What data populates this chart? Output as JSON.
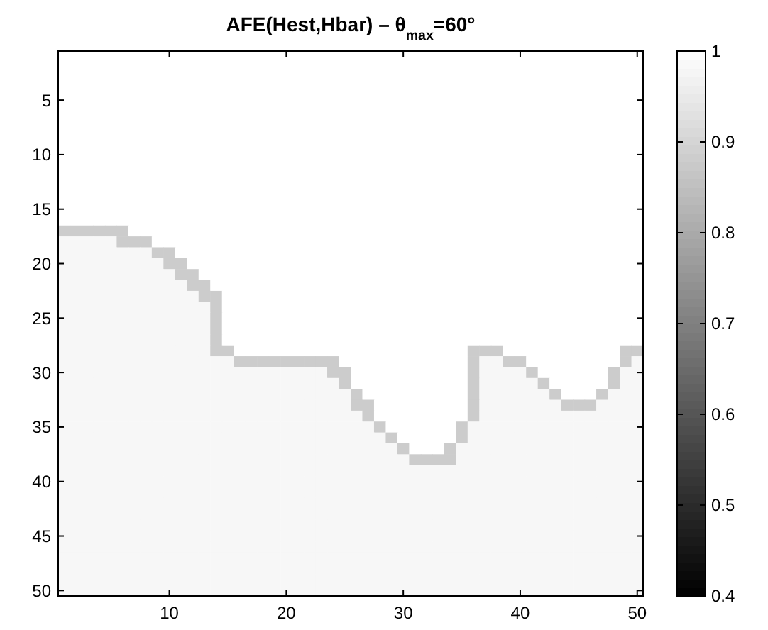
{
  "chart_data": {
    "type": "heatmap",
    "title": "AFE(Hest,Hbar) – θ$_{max}$=60°",
    "categories": [
      null,
      null,
      null,
      null,
      null,
      null,
      null,
      null,
      null,
      "10",
      null,
      null,
      null,
      null,
      null,
      null,
      null,
      null,
      null,
      "20",
      null,
      null,
      null,
      null,
      null,
      null,
      null,
      null,
      null,
      "30",
      null,
      null,
      null,
      null,
      null,
      null,
      null,
      null,
      null,
      "40",
      null,
      null,
      null,
      null,
      null,
      null,
      null,
      null,
      null,
      "50"
    ],
    "y_categories": [
      null,
      null,
      null,
      null,
      "5",
      null,
      null,
      null,
      null,
      "10",
      null,
      null,
      null,
      null,
      "15",
      null,
      null,
      null,
      null,
      "20",
      null,
      null,
      null,
      null,
      "25",
      null,
      null,
      null,
      null,
      "30",
      null,
      null,
      null,
      null,
      "35",
      null,
      null,
      null,
      null,
      "40",
      null,
      null,
      null,
      null,
      "45",
      null,
      null,
      null,
      null,
      "50"
    ],
    "clim": [
      0.4,
      1
    ],
    "cticks": [
      0.4,
      0.5,
      0.6,
      0.7,
      0.8,
      0.9,
      1
    ],
    "colors": [
      "#000000",
      "#ffffff"
    ],
    "cells": [
      [
        1,
        1,
        1,
        1,
        1,
        1,
        1,
        1,
        1,
        1,
        1,
        1,
        1,
        1,
        1,
        1,
        1,
        1,
        1,
        1,
        1,
        1,
        1,
        1,
        1,
        1,
        1,
        1,
        1,
        1,
        1,
        1,
        1,
        1,
        1,
        1,
        1,
        1,
        1,
        1,
        1,
        1,
        1,
        1,
        1,
        1,
        1,
        1,
        1,
        1
      ],
      [
        1,
        1,
        1,
        1,
        1,
        1,
        1,
        1,
        1,
        1,
        1,
        1,
        1,
        1,
        1,
        1,
        1,
        1,
        1,
        1,
        1,
        1,
        1,
        1,
        1,
        1,
        1,
        1,
        1,
        1,
        1,
        1,
        1,
        1,
        1,
        1,
        1,
        1,
        1,
        1,
        1,
        1,
        1,
        1,
        1,
        1,
        1,
        1,
        1,
        1
      ],
      [
        1,
        1,
        1,
        1,
        1,
        1,
        1,
        1,
        1,
        1,
        1,
        1,
        1,
        1,
        1,
        1,
        1,
        1,
        1,
        1,
        1,
        1,
        1,
        1,
        1,
        1,
        1,
        1,
        1,
        1,
        1,
        1,
        1,
        1,
        1,
        1,
        1,
        1,
        1,
        1,
        1,
        1,
        1,
        1,
        1,
        1,
        1,
        1,
        1,
        1
      ],
      [
        1,
        1,
        1,
        1,
        1,
        1,
        1,
        1,
        1,
        1,
        1,
        1,
        1,
        1,
        1,
        1,
        1,
        1,
        1,
        1,
        1,
        1,
        1,
        1,
        1,
        1,
        1,
        1,
        1,
        1,
        1,
        1,
        1,
        1,
        1,
        1,
        1,
        1,
        1,
        1,
        1,
        1,
        1,
        1,
        1,
        1,
        1,
        1,
        1,
        1
      ],
      [
        1,
        1,
        1,
        1,
        1,
        1,
        1,
        1,
        1,
        1,
        1,
        1,
        1,
        1,
        1,
        1,
        1,
        1,
        1,
        1,
        1,
        1,
        1,
        1,
        1,
        1,
        1,
        1,
        1,
        1,
        1,
        1,
        1,
        1,
        1,
        1,
        1,
        1,
        1,
        1,
        1,
        1,
        1,
        1,
        1,
        1,
        1,
        1,
        1,
        1
      ],
      [
        1,
        1,
        1,
        1,
        1,
        1,
        1,
        1,
        1,
        1,
        1,
        1,
        1,
        1,
        1,
        1,
        1,
        1,
        1,
        1,
        1,
        1,
        1,
        1,
        1,
        1,
        1,
        1,
        1,
        1,
        1,
        1,
        1,
        1,
        1,
        1,
        1,
        1,
        1,
        1,
        1,
        1,
        1,
        1,
        1,
        1,
        1,
        1,
        1,
        1
      ],
      [
        1,
        1,
        1,
        1,
        1,
        1,
        1,
        1,
        1,
        1,
        1,
        1,
        1,
        1,
        1,
        1,
        1,
        1,
        1,
        1,
        1,
        1,
        1,
        1,
        1,
        1,
        1,
        1,
        1,
        1,
        1,
        1,
        1,
        1,
        1,
        1,
        1,
        1,
        1,
        1,
        1,
        1,
        1,
        1,
        1,
        1,
        1,
        1,
        1,
        1
      ],
      [
        1,
        1,
        1,
        1,
        1,
        1,
        1,
        1,
        1,
        1,
        1,
        1,
        1,
        1,
        1,
        1,
        1,
        1,
        1,
        1,
        1,
        1,
        1,
        1,
        1,
        1,
        1,
        1,
        1,
        1,
        1,
        1,
        1,
        1,
        1,
        1,
        1,
        1,
        1,
        1,
        1,
        1,
        1,
        1,
        1,
        1,
        1,
        1,
        1,
        1
      ],
      [
        1,
        1,
        1,
        1,
        1,
        1,
        1,
        1,
        1,
        1,
        1,
        1,
        1,
        1,
        1,
        1,
        1,
        1,
        1,
        1,
        1,
        1,
        1,
        1,
        1,
        1,
        1,
        1,
        1,
        1,
        1,
        1,
        1,
        1,
        1,
        1,
        1,
        1,
        1,
        1,
        1,
        1,
        1,
        1,
        1,
        1,
        1,
        1,
        1,
        1
      ],
      [
        1,
        1,
        1,
        1,
        1,
        1,
        1,
        1,
        1,
        1,
        1,
        1,
        1,
        1,
        1,
        1,
        1,
        1,
        1,
        1,
        1,
        1,
        1,
        1,
        1,
        1,
        1,
        1,
        1,
        1,
        1,
        1,
        1,
        1,
        1,
        1,
        1,
        1,
        1,
        1,
        1,
        1,
        1,
        1,
        1,
        1,
        1,
        1,
        1,
        1
      ],
      [
        1,
        1,
        1,
        1,
        1,
        1,
        1,
        1,
        1,
        1,
        1,
        1,
        1,
        1,
        1,
        1,
        1,
        1,
        1,
        1,
        1,
        1,
        1,
        1,
        1,
        1,
        1,
        1,
        1,
        1,
        1,
        1,
        1,
        1,
        1,
        1,
        1,
        1,
        1,
        1,
        1,
        1,
        1,
        1,
        1,
        1,
        1,
        1,
        1,
        1
      ],
      [
        1,
        1,
        1,
        1,
        1,
        1,
        1,
        1,
        1,
        1,
        1,
        1,
        1,
        1,
        1,
        1,
        1,
        1,
        1,
        1,
        1,
        1,
        1,
        1,
        1,
        1,
        1,
        1,
        1,
        1,
        1,
        1,
        1,
        1,
        1,
        1,
        1,
        1,
        1,
        1,
        1,
        1,
        1,
        1,
        1,
        1,
        1,
        1,
        1,
        1
      ],
      [
        1,
        1,
        1,
        1,
        1,
        1,
        1,
        1,
        1,
        1,
        1,
        1,
        1,
        1,
        1,
        1,
        1,
        1,
        1,
        1,
        1,
        1,
        1,
        1,
        1,
        1,
        1,
        1,
        1,
        1,
        1,
        1,
        1,
        1,
        1,
        1,
        1,
        1,
        1,
        1,
        1,
        1,
        1,
        1,
        1,
        1,
        1,
        1,
        1,
        1
      ],
      [
        1,
        1,
        1,
        1,
        1,
        1,
        1,
        1,
        1,
        1,
        1,
        1,
        1,
        1,
        1,
        1,
        1,
        1,
        1,
        1,
        1,
        1,
        1,
        1,
        1,
        1,
        1,
        1,
        1,
        1,
        1,
        1,
        1,
        1,
        1,
        1,
        1,
        1,
        1,
        1,
        1,
        1,
        1,
        1,
        1,
        1,
        1,
        1,
        1,
        1
      ],
      [
        1,
        1,
        1,
        1,
        1,
        1,
        1,
        1,
        1,
        1,
        1,
        1,
        1,
        1,
        1,
        1,
        1,
        1,
        1,
        1,
        1,
        1,
        1,
        1,
        1,
        1,
        1,
        1,
        1,
        1,
        1,
        1,
        1,
        1,
        1,
        1,
        1,
        1,
        1,
        1,
        1,
        1,
        1,
        1,
        1,
        1,
        1,
        1,
        1,
        1
      ],
      [
        1,
        1,
        1,
        1,
        1,
        1,
        1,
        1,
        1,
        1,
        1,
        1,
        1,
        1,
        1,
        1,
        1,
        1,
        1,
        1,
        1,
        1,
        1,
        1,
        1,
        1,
        1,
        1,
        1,
        1,
        1,
        1,
        1,
        1,
        1,
        1,
        1,
        1,
        1,
        1,
        1,
        1,
        1,
        1,
        1,
        1,
        1,
        1,
        1,
        1
      ],
      [
        0.88,
        0.88,
        0.88,
        0.88,
        0.88,
        0.88,
        1,
        1,
        1,
        1,
        1,
        1,
        1,
        1,
        1,
        1,
        1,
        1,
        1,
        1,
        1,
        1,
        1,
        1,
        1,
        1,
        1,
        1,
        1,
        1,
        1,
        1,
        1,
        1,
        1,
        1,
        1,
        1,
        1,
        1,
        1,
        1,
        1,
        1,
        1,
        1,
        1,
        1,
        1,
        1
      ],
      [
        0.98,
        0.98,
        0.98,
        0.98,
        0.98,
        0.88,
        0.88,
        0.88,
        1,
        1,
        1,
        1,
        1,
        1,
        1,
        1,
        1,
        1,
        1,
        1,
        1,
        1,
        1,
        1,
        1,
        1,
        1,
        1,
        1,
        1,
        1,
        1,
        1,
        1,
        1,
        1,
        1,
        1,
        1,
        1,
        1,
        1,
        1,
        1,
        1,
        1,
        1,
        1,
        1,
        1
      ],
      [
        0.98,
        0.98,
        0.98,
        0.98,
        0.98,
        0.98,
        0.98,
        0.98,
        0.88,
        0.88,
        1,
        1,
        1,
        1,
        1,
        1,
        1,
        1,
        1,
        1,
        1,
        1,
        1,
        1,
        1,
        1,
        1,
        1,
        1,
        1,
        1,
        1,
        1,
        1,
        1,
        1,
        1,
        1,
        1,
        1,
        1,
        1,
        1,
        1,
        1,
        1,
        1,
        1,
        1,
        1
      ],
      [
        0.98,
        0.98,
        0.98,
        0.98,
        0.98,
        0.98,
        0.98,
        0.98,
        0.98,
        0.88,
        0.88,
        1,
        1,
        1,
        1,
        1,
        1,
        1,
        1,
        1,
        1,
        1,
        1,
        1,
        1,
        1,
        1,
        1,
        1,
        1,
        1,
        1,
        1,
        1,
        1,
        1,
        1,
        1,
        1,
        1,
        1,
        1,
        1,
        1,
        1,
        1,
        1,
        1,
        1,
        1
      ],
      [
        0.98,
        0.98,
        0.98,
        0.98,
        0.98,
        0.98,
        0.98,
        0.98,
        0.98,
        0.98,
        0.88,
        0.88,
        1,
        1,
        1,
        1,
        1,
        1,
        1,
        1,
        1,
        1,
        1,
        1,
        1,
        1,
        1,
        1,
        1,
        1,
        1,
        1,
        1,
        1,
        1,
        1,
        1,
        1,
        1,
        1,
        1,
        1,
        1,
        1,
        1,
        1,
        1,
        1,
        1,
        1
      ],
      [
        0.98,
        0.98,
        0.98,
        0.98,
        0.98,
        0.98,
        0.98,
        0.98,
        0.98,
        0.98,
        0.98,
        0.88,
        0.88,
        1,
        1,
        1,
        1,
        1,
        1,
        1,
        1,
        1,
        1,
        1,
        1,
        1,
        1,
        1,
        1,
        1,
        1,
        1,
        1,
        1,
        1,
        1,
        1,
        1,
        1,
        1,
        1,
        1,
        1,
        1,
        1,
        1,
        1,
        1,
        1,
        1
      ],
      [
        0.98,
        0.98,
        0.98,
        0.98,
        0.98,
        0.98,
        0.98,
        0.98,
        0.98,
        0.98,
        0.98,
        0.98,
        0.88,
        0.88,
        1,
        1,
        1,
        1,
        1,
        1,
        1,
        1,
        1,
        1,
        1,
        1,
        1,
        1,
        1,
        1,
        1,
        1,
        1,
        1,
        1,
        1,
        1,
        1,
        1,
        1,
        1,
        1,
        1,
        1,
        1,
        1,
        1,
        1,
        1,
        1
      ],
      [
        0.98,
        0.98,
        0.98,
        0.98,
        0.98,
        0.98,
        0.98,
        0.98,
        0.98,
        0.98,
        0.98,
        0.98,
        0.98,
        0.88,
        1,
        1,
        1,
        1,
        1,
        1,
        1,
        1,
        1,
        1,
        1,
        1,
        1,
        1,
        1,
        1,
        1,
        1,
        1,
        1,
        1,
        1,
        1,
        1,
        1,
        1,
        1,
        1,
        1,
        1,
        1,
        1,
        1,
        1,
        1,
        1
      ],
      [
        0.98,
        0.98,
        0.98,
        0.98,
        0.98,
        0.98,
        0.98,
        0.98,
        0.98,
        0.98,
        0.98,
        0.98,
        0.98,
        0.88,
        1,
        1,
        1,
        1,
        1,
        1,
        1,
        1,
        1,
        1,
        1,
        1,
        1,
        1,
        1,
        1,
        1,
        1,
        1,
        1,
        1,
        1,
        1,
        1,
        1,
        1,
        1,
        1,
        1,
        1,
        1,
        1,
        1,
        1,
        1,
        1
      ],
      [
        0.98,
        0.98,
        0.98,
        0.98,
        0.98,
        0.98,
        0.98,
        0.98,
        0.98,
        0.98,
        0.98,
        0.98,
        0.98,
        0.88,
        1,
        1,
        1,
        1,
        1,
        1,
        1,
        1,
        1,
        1,
        1,
        1,
        1,
        1,
        1,
        1,
        1,
        1,
        1,
        1,
        1,
        1,
        1,
        1,
        1,
        1,
        1,
        1,
        1,
        1,
        1,
        1,
        1,
        1,
        1,
        1
      ],
      [
        0.98,
        0.98,
        0.98,
        0.98,
        0.98,
        0.98,
        0.98,
        0.98,
        0.98,
        0.98,
        0.98,
        0.98,
        0.98,
        0.88,
        1,
        1,
        1,
        1,
        1,
        1,
        1,
        1,
        1,
        1,
        1,
        1,
        1,
        1,
        1,
        1,
        1,
        1,
        1,
        1,
        1,
        1,
        1,
        1,
        1,
        1,
        1,
        1,
        1,
        1,
        1,
        1,
        1,
        1,
        1,
        1
      ],
      [
        0.98,
        0.98,
        0.98,
        0.98,
        0.98,
        0.98,
        0.98,
        0.98,
        0.98,
        0.98,
        0.98,
        0.98,
        0.98,
        0.88,
        0.88,
        1,
        1,
        1,
        1,
        1,
        1,
        1,
        1,
        1,
        1,
        1,
        1,
        1,
        1,
        1,
        1,
        1,
        1,
        1,
        1,
        0.88,
        0.88,
        0.88,
        1,
        1,
        1,
        1,
        1,
        1,
        1,
        1,
        1,
        1,
        0.88,
        0.88
      ],
      [
        0.98,
        0.98,
        0.98,
        0.98,
        0.98,
        0.98,
        0.98,
        0.98,
        0.98,
        0.98,
        0.98,
        0.98,
        0.98,
        0.98,
        0.98,
        0.88,
        0.88,
        0.88,
        0.88,
        0.88,
        0.88,
        0.88,
        0.88,
        0.88,
        1,
        1,
        1,
        1,
        1,
        1,
        1,
        1,
        1,
        1,
        1,
        0.88,
        0.98,
        0.98,
        0.88,
        0.88,
        1,
        1,
        1,
        1,
        1,
        1,
        1,
        1,
        0.88,
        0.98
      ],
      [
        0.98,
        0.98,
        0.98,
        0.98,
        0.98,
        0.98,
        0.98,
        0.98,
        0.98,
        0.98,
        0.98,
        0.98,
        0.98,
        0.98,
        0.98,
        0.98,
        0.98,
        0.98,
        0.98,
        0.98,
        0.98,
        0.98,
        0.98,
        0.88,
        0.88,
        1,
        1,
        1,
        1,
        1,
        1,
        1,
        1,
        1,
        1,
        0.88,
        0.98,
        0.98,
        0.98,
        0.98,
        0.88,
        1,
        1,
        1,
        1,
        1,
        1,
        0.88,
        0.98,
        0.98
      ],
      [
        0.98,
        0.98,
        0.98,
        0.98,
        0.98,
        0.98,
        0.98,
        0.98,
        0.98,
        0.98,
        0.98,
        0.98,
        0.98,
        0.98,
        0.98,
        0.98,
        0.98,
        0.98,
        0.98,
        0.98,
        0.98,
        0.98,
        0.98,
        0.98,
        0.88,
        1,
        1,
        1,
        1,
        1,
        1,
        1,
        1,
        1,
        1,
        0.88,
        0.98,
        0.98,
        0.98,
        0.98,
        0.98,
        0.88,
        1,
        1,
        1,
        1,
        1,
        0.88,
        0.98,
        0.98
      ],
      [
        0.98,
        0.98,
        0.98,
        0.98,
        0.98,
        0.98,
        0.98,
        0.98,
        0.98,
        0.98,
        0.98,
        0.98,
        0.98,
        0.98,
        0.98,
        0.98,
        0.98,
        0.98,
        0.98,
        0.98,
        0.98,
        0.98,
        0.98,
        0.98,
        0.98,
        0.88,
        1,
        1,
        1,
        1,
        1,
        1,
        1,
        1,
        1,
        0.88,
        0.98,
        0.98,
        0.98,
        0.98,
        0.98,
        0.98,
        0.88,
        1,
        1,
        1,
        0.88,
        0.98,
        0.98,
        0.98
      ],
      [
        0.98,
        0.98,
        0.98,
        0.98,
        0.98,
        0.98,
        0.98,
        0.98,
        0.98,
        0.98,
        0.98,
        0.98,
        0.98,
        0.98,
        0.98,
        0.98,
        0.98,
        0.98,
        0.98,
        0.98,
        0.98,
        0.98,
        0.98,
        0.98,
        0.98,
        0.88,
        0.88,
        1,
        1,
        1,
        1,
        1,
        1,
        1,
        1,
        0.88,
        0.98,
        0.98,
        0.98,
        0.98,
        0.98,
        0.98,
        0.98,
        0.88,
        0.88,
        0.88,
        0.98,
        0.98,
        0.98,
        0.98
      ],
      [
        0.98,
        0.98,
        0.98,
        0.98,
        0.98,
        0.98,
        0.98,
        0.98,
        0.98,
        0.98,
        0.98,
        0.98,
        0.98,
        0.98,
        0.98,
        0.98,
        0.98,
        0.98,
        0.98,
        0.98,
        0.98,
        0.98,
        0.98,
        0.98,
        0.98,
        0.98,
        0.88,
        1,
        1,
        1,
        1,
        1,
        1,
        1,
        1,
        0.88,
        0.98,
        0.98,
        0.98,
        0.98,
        0.98,
        0.98,
        0.98,
        0.98,
        0.98,
        0.98,
        0.98,
        0.98,
        0.98,
        0.98
      ],
      [
        0.98,
        0.98,
        0.98,
        0.98,
        0.98,
        0.98,
        0.98,
        0.98,
        0.98,
        0.98,
        0.98,
        0.98,
        0.98,
        0.98,
        0.98,
        0.98,
        0.98,
        0.98,
        0.98,
        0.98,
        0.98,
        0.98,
        0.98,
        0.98,
        0.98,
        0.98,
        0.98,
        0.88,
        1,
        1,
        1,
        1,
        1,
        1,
        0.88,
        0.98,
        0.98,
        0.98,
        0.98,
        0.98,
        0.98,
        0.98,
        0.98,
        0.98,
        0.98,
        0.98,
        0.98,
        0.98,
        0.98,
        0.98
      ],
      [
        0.98,
        0.98,
        0.98,
        0.98,
        0.98,
        0.98,
        0.98,
        0.98,
        0.98,
        0.98,
        0.98,
        0.98,
        0.98,
        0.98,
        0.98,
        0.98,
        0.98,
        0.98,
        0.98,
        0.98,
        0.98,
        0.98,
        0.98,
        0.98,
        0.98,
        0.98,
        0.98,
        0.98,
        0.88,
        1,
        1,
        1,
        1,
        1,
        0.88,
        0.98,
        0.98,
        0.98,
        0.98,
        0.98,
        0.98,
        0.98,
        0.98,
        0.98,
        0.98,
        0.98,
        0.98,
        0.98,
        0.98,
        0.98
      ],
      [
        0.98,
        0.98,
        0.98,
        0.98,
        0.98,
        0.98,
        0.98,
        0.98,
        0.98,
        0.98,
        0.98,
        0.98,
        0.98,
        0.98,
        0.98,
        0.98,
        0.98,
        0.98,
        0.98,
        0.98,
        0.98,
        0.98,
        0.98,
        0.98,
        0.98,
        0.98,
        0.98,
        0.98,
        0.98,
        0.88,
        1,
        1,
        1,
        0.88,
        0.98,
        0.98,
        0.98,
        0.98,
        0.98,
        0.98,
        0.98,
        0.98,
        0.98,
        0.98,
        0.98,
        0.98,
        0.98,
        0.98,
        0.98,
        0.98
      ],
      [
        0.98,
        0.98,
        0.98,
        0.98,
        0.98,
        0.98,
        0.98,
        0.98,
        0.98,
        0.98,
        0.98,
        0.98,
        0.98,
        0.98,
        0.98,
        0.98,
        0.98,
        0.98,
        0.98,
        0.98,
        0.98,
        0.98,
        0.98,
        0.98,
        0.98,
        0.98,
        0.98,
        0.98,
        0.98,
        0.98,
        0.88,
        0.88,
        0.88,
        0.88,
        0.98,
        0.98,
        0.98,
        0.98,
        0.98,
        0.98,
        0.98,
        0.98,
        0.98,
        0.98,
        0.98,
        0.98,
        0.98,
        0.98,
        0.98,
        0.98
      ],
      [
        0.98,
        0.98,
        0.98,
        0.98,
        0.98,
        0.98,
        0.98,
        0.98,
        0.98,
        0.98,
        0.98,
        0.98,
        0.98,
        0.98,
        0.98,
        0.98,
        0.98,
        0.98,
        0.98,
        0.98,
        0.98,
        0.98,
        0.98,
        0.98,
        0.98,
        0.98,
        0.98,
        0.98,
        0.98,
        0.98,
        0.98,
        0.98,
        0.98,
        0.98,
        0.98,
        0.98,
        0.98,
        0.98,
        0.98,
        0.98,
        0.98,
        0.98,
        0.98,
        0.98,
        0.98,
        0.98,
        0.98,
        0.98,
        0.98,
        0.98
      ],
      [
        0.98,
        0.98,
        0.98,
        0.98,
        0.98,
        0.98,
        0.98,
        0.98,
        0.98,
        0.98,
        0.98,
        0.98,
        0.98,
        0.98,
        0.98,
        0.98,
        0.98,
        0.98,
        0.98,
        0.98,
        0.98,
        0.98,
        0.98,
        0.98,
        0.98,
        0.98,
        0.98,
        0.98,
        0.98,
        0.98,
        0.98,
        0.98,
        0.98,
        0.98,
        0.98,
        0.98,
        0.98,
        0.98,
        0.98,
        0.98,
        0.98,
        0.98,
        0.98,
        0.98,
        0.98,
        0.98,
        0.98,
        0.98,
        0.98,
        0.98
      ],
      [
        0.98,
        0.98,
        0.98,
        0.98,
        0.98,
        0.98,
        0.98,
        0.98,
        0.98,
        0.98,
        0.98,
        0.98,
        0.98,
        0.98,
        0.98,
        0.98,
        0.98,
        0.98,
        0.98,
        0.98,
        0.98,
        0.98,
        0.98,
        0.98,
        0.98,
        0.98,
        0.98,
        0.98,
        0.98,
        0.98,
        0.98,
        0.98,
        0.98,
        0.98,
        0.98,
        0.98,
        0.98,
        0.98,
        0.98,
        0.98,
        0.98,
        0.98,
        0.98,
        0.98,
        0.98,
        0.98,
        0.98,
        0.98,
        0.98,
        0.98
      ],
      [
        0.98,
        0.98,
        0.98,
        0.98,
        0.98,
        0.98,
        0.98,
        0.98,
        0.98,
        0.98,
        0.98,
        0.98,
        0.98,
        0.98,
        0.98,
        0.98,
        0.98,
        0.98,
        0.98,
        0.98,
        0.98,
        0.98,
        0.98,
        0.98,
        0.98,
        0.98,
        0.98,
        0.98,
        0.98,
        0.98,
        0.98,
        0.98,
        0.98,
        0.98,
        0.98,
        0.98,
        0.98,
        0.98,
        0.98,
        0.98,
        0.98,
        0.98,
        0.98,
        0.98,
        0.98,
        0.98,
        0.98,
        0.98,
        0.98,
        0.98
      ],
      [
        0.98,
        0.98,
        0.98,
        0.98,
        0.98,
        0.98,
        0.98,
        0.98,
        0.98,
        0.98,
        0.98,
        0.98,
        0.98,
        0.98,
        0.98,
        0.98,
        0.98,
        0.98,
        0.98,
        0.98,
        0.98,
        0.98,
        0.98,
        0.98,
        0.98,
        0.98,
        0.98,
        0.98,
        0.98,
        0.98,
        0.98,
        0.98,
        0.98,
        0.98,
        0.98,
        0.98,
        0.98,
        0.98,
        0.98,
        0.98,
        0.98,
        0.98,
        0.98,
        0.98,
        0.98,
        0.98,
        0.98,
        0.98,
        0.98,
        0.98
      ],
      [
        0.98,
        0.98,
        0.98,
        0.98,
        0.98,
        0.98,
        0.98,
        0.98,
        0.98,
        0.98,
        0.98,
        0.98,
        0.98,
        0.98,
        0.98,
        0.98,
        0.98,
        0.98,
        0.98,
        0.98,
        0.98,
        0.98,
        0.98,
        0.98,
        0.98,
        0.98,
        0.98,
        0.98,
        0.98,
        0.98,
        0.98,
        0.98,
        0.98,
        0.98,
        0.98,
        0.98,
        0.98,
        0.98,
        0.98,
        0.98,
        0.98,
        0.98,
        0.98,
        0.98,
        0.98,
        0.98,
        0.98,
        0.98,
        0.98,
        0.98
      ],
      [
        0.98,
        0.98,
        0.98,
        0.98,
        0.98,
        0.98,
        0.98,
        0.98,
        0.98,
        0.98,
        0.98,
        0.98,
        0.98,
        0.98,
        0.98,
        0.98,
        0.98,
        0.98,
        0.98,
        0.98,
        0.98,
        0.98,
        0.98,
        0.98,
        0.98,
        0.98,
        0.98,
        0.98,
        0.98,
        0.98,
        0.98,
        0.98,
        0.98,
        0.98,
        0.98,
        0.98,
        0.98,
        0.98,
        0.98,
        0.98,
        0.98,
        0.98,
        0.98,
        0.98,
        0.98,
        0.98,
        0.98,
        0.98,
        0.98,
        0.98
      ],
      [
        0.98,
        0.98,
        0.98,
        0.98,
        0.98,
        0.98,
        0.98,
        0.98,
        0.98,
        0.98,
        0.98,
        0.98,
        0.98,
        0.98,
        0.98,
        0.98,
        0.98,
        0.98,
        0.98,
        0.98,
        0.98,
        0.98,
        0.98,
        0.98,
        0.98,
        0.98,
        0.98,
        0.98,
        0.98,
        0.98,
        0.98,
        0.98,
        0.98,
        0.98,
        0.98,
        0.98,
        0.98,
        0.98,
        0.98,
        0.98,
        0.98,
        0.98,
        0.98,
        0.98,
        0.98,
        0.98,
        0.98,
        0.98,
        0.98,
        0.98
      ],
      [
        0.98,
        0.98,
        0.98,
        0.98,
        0.98,
        0.98,
        0.98,
        0.98,
        0.98,
        0.98,
        0.98,
        0.98,
        0.98,
        0.98,
        0.98,
        0.98,
        0.98,
        0.98,
        0.98,
        0.98,
        0.98,
        0.98,
        0.98,
        0.98,
        0.98,
        0.98,
        0.98,
        0.98,
        0.98,
        0.98,
        0.98,
        0.98,
        0.98,
        0.98,
        0.98,
        0.98,
        0.98,
        0.98,
        0.98,
        0.98,
        0.98,
        0.98,
        0.98,
        0.98,
        0.98,
        0.98,
        0.98,
        0.98,
        0.98,
        0.98
      ],
      [
        0.98,
        0.98,
        0.98,
        0.98,
        0.98,
        0.98,
        0.98,
        0.98,
        0.98,
        0.98,
        0.98,
        0.98,
        0.98,
        0.98,
        0.98,
        0.98,
        0.98,
        0.98,
        0.98,
        0.98,
        0.98,
        0.98,
        0.98,
        0.98,
        0.98,
        0.98,
        0.98,
        0.98,
        0.98,
        0.98,
        0.98,
        0.98,
        0.98,
        0.98,
        0.98,
        0.98,
        0.98,
        0.98,
        0.98,
        0.98,
        0.98,
        0.98,
        0.98,
        0.98,
        0.98,
        0.98,
        0.98,
        0.98,
        0.98,
        0.98
      ],
      [
        0.98,
        0.98,
        0.98,
        0.98,
        0.98,
        0.98,
        0.98,
        0.98,
        0.98,
        0.98,
        0.98,
        0.98,
        0.98,
        0.98,
        0.98,
        0.98,
        0.98,
        0.98,
        0.98,
        0.98,
        0.98,
        0.98,
        0.98,
        0.98,
        0.98,
        0.98,
        0.98,
        0.98,
        0.98,
        0.98,
        0.98,
        0.98,
        0.98,
        0.98,
        0.98,
        0.98,
        0.98,
        0.98,
        0.98,
        0.98,
        0.98,
        0.98,
        0.98,
        0.98,
        0.98,
        0.98,
        0.98,
        0.98,
        0.98,
        0.98
      ],
      [
        0.98,
        0.98,
        0.98,
        0.98,
        0.98,
        0.98,
        0.98,
        0.98,
        0.98,
        0.98,
        0.98,
        0.98,
        0.98,
        0.98,
        0.98,
        0.98,
        0.98,
        0.98,
        0.98,
        0.98,
        0.98,
        0.98,
        0.98,
        0.98,
        0.98,
        0.98,
        0.98,
        0.98,
        0.98,
        0.98,
        0.98,
        0.98,
        0.98,
        0.98,
        0.98,
        0.98,
        0.98,
        0.98,
        0.98,
        0.98,
        0.98,
        0.98,
        0.98,
        0.98,
        0.98,
        0.98,
        0.98,
        0.98,
        0.98,
        0.98
      ]
    ]
  }
}
